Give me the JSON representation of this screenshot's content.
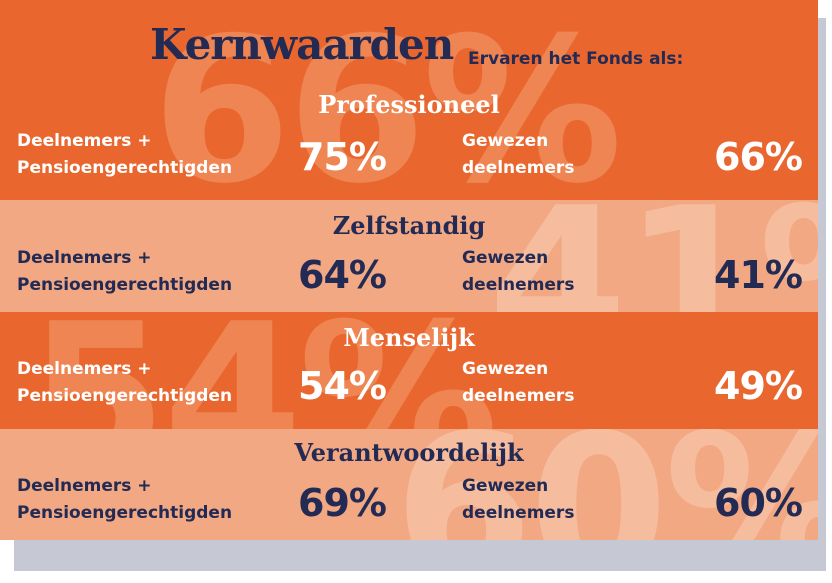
{
  "title": "Kernwaarden",
  "subtitle": "Ervaren het Fonds als:",
  "colors": {
    "orange_dark": "#e9672e",
    "orange_light": "#f2a882",
    "navy": "#232b54",
    "white": "#ffffff"
  },
  "group_labels": {
    "participants_line1": "Deelnemers +",
    "participants_line2": "Pensioengerechtigden",
    "former_line1": "Gewezen",
    "former_line2": "deelnemers"
  },
  "values": [
    {
      "name": "Professioneel",
      "participants": "75%",
      "former": "66%",
      "background": "66%"
    },
    {
      "name": "Zelfstandig",
      "participants": "64%",
      "former": "41%",
      "background": "41%"
    },
    {
      "name": "Menselijk",
      "participants": "54%",
      "former": "49%",
      "background": "54%"
    },
    {
      "name": "Verantwoordelijk",
      "participants": "69%",
      "former": "60%",
      "background": "60%"
    }
  ]
}
